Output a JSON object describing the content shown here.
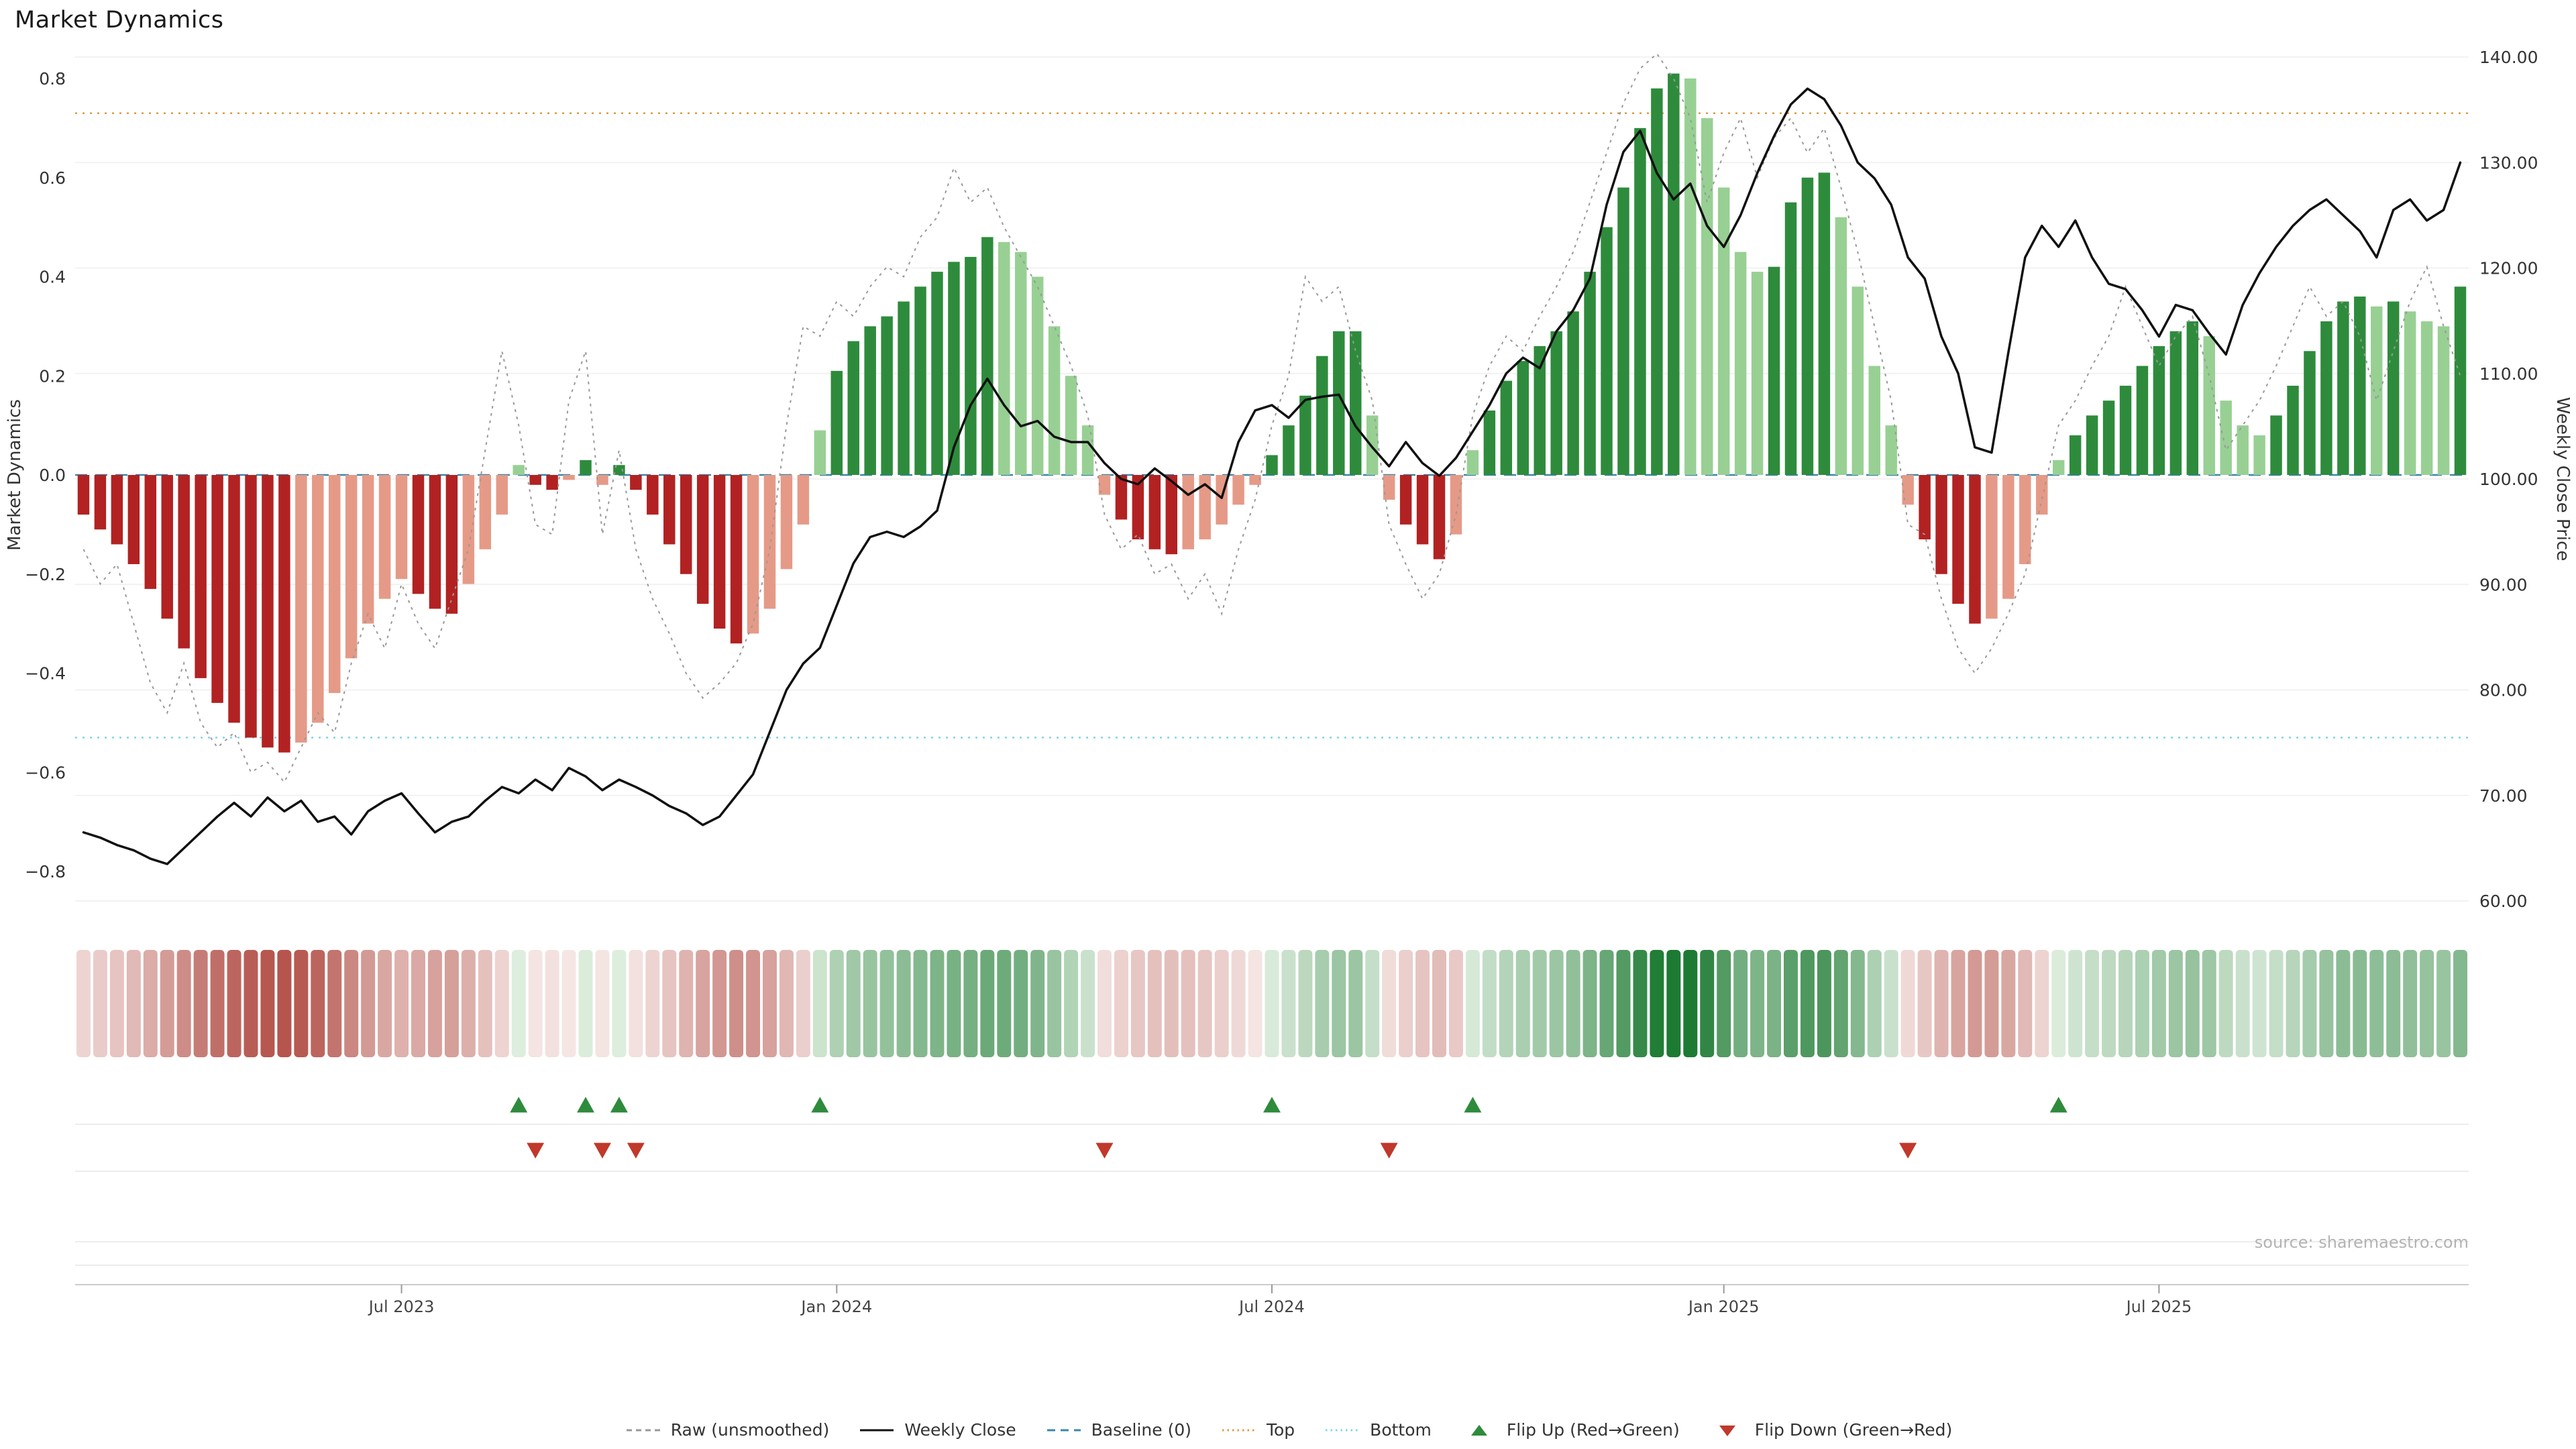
{
  "title": "Market Dynamics",
  "source": "source: sharemaestro.com",
  "axes": {
    "left_ticks": [
      {
        "label": "0.8",
        "v": 0.8
      },
      {
        "label": "0.6",
        "v": 0.6
      },
      {
        "label": "0.4",
        "v": 0.4
      },
      {
        "label": "0.2",
        "v": 0.2
      },
      {
        "label": "0.0",
        "v": 0.0
      },
      {
        "label": "−0.2",
        "v": -0.2
      },
      {
        "label": "−0.4",
        "v": -0.4
      },
      {
        "label": "−0.6",
        "v": -0.6
      },
      {
        "label": "−0.8",
        "v": -0.8
      }
    ],
    "right_ticks": [
      {
        "label": "140.00",
        "v": 140
      },
      {
        "label": "130.00",
        "v": 130
      },
      {
        "label": "120.00",
        "v": 120
      },
      {
        "label": "110.00",
        "v": 110
      },
      {
        "label": "100.00",
        "v": 100
      },
      {
        "label": "90.00",
        "v": 90
      },
      {
        "label": "80.00",
        "v": 80
      },
      {
        "label": "70.00",
        "v": 70
      },
      {
        "label": "60.00",
        "v": 60
      }
    ],
    "x_ticks": [
      {
        "label": "Jul 2023",
        "date": "2023-07-03"
      },
      {
        "label": "Jan 2024",
        "date": "2024-01-01"
      },
      {
        "label": "Jul 2024",
        "date": "2024-07-01"
      },
      {
        "label": "Jan 2025",
        "date": "2025-01-06"
      },
      {
        "label": "Jul 2025",
        "date": "2025-07-07"
      }
    ]
  },
  "legend": [
    {
      "label": "Raw (unsmoothed)",
      "swatch": "dashed-line",
      "color": "#999999"
    },
    {
      "label": "Weekly Close",
      "swatch": "solid-line",
      "color": "#111111"
    },
    {
      "label": "Baseline (0)",
      "swatch": "long-dashed-line",
      "color": "#3a87ad"
    },
    {
      "label": "Top",
      "swatch": "dotted-line",
      "color": "#e0993f"
    },
    {
      "label": "Bottom",
      "swatch": "dotted-line",
      "color": "#7fd4e8"
    },
    {
      "label": "Flip Up (Red→Green)",
      "swatch": "triangle-up",
      "color": "#2e8b3c"
    },
    {
      "label": "Flip Down (Green→Red)",
      "swatch": "triangle-down",
      "color": "#c0392b"
    }
  ],
  "colors": {
    "bar_dark_green": "#2e8b3c",
    "bar_light_green": "#98d094",
    "bar_dark_red": "#b22222",
    "bar_light_red": "#e59a87",
    "price_line": "#111111",
    "raw_line": "#999999",
    "baseline": "#3a87ad",
    "top_line": "#e0993f",
    "bottom_line": "#7fd4e8",
    "flip_up": "#2e8b3c",
    "flip_down": "#c0392b",
    "heat_green_deep": "#1d7a33",
    "heat_green_pale": "#e2f0e2",
    "heat_red_deep": "#b04a42",
    "heat_red_pale": "#f6e9e7"
  },
  "chart_data": {
    "type": "bar+line",
    "title": "Market Dynamics",
    "left_axis": {
      "label": "Market Dynamics",
      "range": [
        -0.88,
        0.88
      ]
    },
    "right_axis": {
      "label": "Weekly Close Price",
      "range": [
        58,
        142
      ]
    },
    "reference_lines": {
      "baseline": 0,
      "top": 0.73,
      "bottom": -0.53
    },
    "flip_up_dates": [
      "2023-08-21",
      "2023-09-18",
      "2023-10-02",
      "2023-12-25",
      "2024-07-01",
      "2024-09-23",
      "2025-05-26"
    ],
    "flip_down_dates": [
      "2023-08-28",
      "2023-09-25",
      "2023-10-09",
      "2024-04-22",
      "2024-08-19",
      "2025-03-24"
    ],
    "x": [
      "2023-02-20",
      "2023-02-27",
      "2023-03-06",
      "2023-03-13",
      "2023-03-20",
      "2023-03-27",
      "2023-04-03",
      "2023-04-10",
      "2023-04-17",
      "2023-04-24",
      "2023-05-01",
      "2023-05-08",
      "2023-05-15",
      "2023-05-22",
      "2023-05-29",
      "2023-06-05",
      "2023-06-12",
      "2023-06-19",
      "2023-06-26",
      "2023-07-03",
      "2023-07-10",
      "2023-07-17",
      "2023-07-24",
      "2023-07-31",
      "2023-08-07",
      "2023-08-14",
      "2023-08-21",
      "2023-08-28",
      "2023-09-04",
      "2023-09-11",
      "2023-09-18",
      "2023-09-25",
      "2023-10-02",
      "2023-10-09",
      "2023-10-16",
      "2023-10-23",
      "2023-10-30",
      "2023-11-06",
      "2023-11-13",
      "2023-11-20",
      "2023-11-27",
      "2023-12-04",
      "2023-12-11",
      "2023-12-18",
      "2023-12-25",
      "2024-01-01",
      "2024-01-08",
      "2024-01-15",
      "2024-01-22",
      "2024-01-29",
      "2024-02-05",
      "2024-02-12",
      "2024-02-19",
      "2024-02-26",
      "2024-03-04",
      "2024-03-11",
      "2024-03-18",
      "2024-03-25",
      "2024-04-01",
      "2024-04-08",
      "2024-04-15",
      "2024-04-22",
      "2024-04-29",
      "2024-05-06",
      "2024-05-13",
      "2024-05-20",
      "2024-05-27",
      "2024-06-03",
      "2024-06-10",
      "2024-06-17",
      "2024-06-24",
      "2024-07-01",
      "2024-07-08",
      "2024-07-15",
      "2024-07-22",
      "2024-07-29",
      "2024-08-05",
      "2024-08-12",
      "2024-08-19",
      "2024-08-26",
      "2024-09-02",
      "2024-09-09",
      "2024-09-16",
      "2024-09-23",
      "2024-09-30",
      "2024-10-07",
      "2024-10-14",
      "2024-10-21",
      "2024-10-28",
      "2024-11-04",
      "2024-11-11",
      "2024-11-18",
      "2024-11-25",
      "2024-12-02",
      "2024-12-09",
      "2024-12-16",
      "2024-12-23",
      "2024-12-30",
      "2025-01-06",
      "2025-01-13",
      "2025-01-20",
      "2025-01-27",
      "2025-02-03",
      "2025-02-10",
      "2025-02-17",
      "2025-02-24",
      "2025-03-03",
      "2025-03-10",
      "2025-03-17",
      "2025-03-24",
      "2025-03-31",
      "2025-04-07",
      "2025-04-14",
      "2025-04-21",
      "2025-04-28",
      "2025-05-05",
      "2025-05-12",
      "2025-05-19",
      "2025-05-26",
      "2025-06-02",
      "2025-06-09",
      "2025-06-16",
      "2025-06-23",
      "2025-06-30",
      "2025-07-07",
      "2025-07-14",
      "2025-07-21",
      "2025-07-28",
      "2025-08-04",
      "2025-08-11",
      "2025-08-18",
      "2025-08-25",
      "2025-09-01",
      "2025-09-08",
      "2025-09-15",
      "2025-09-22",
      "2025-09-29",
      "2025-10-06",
      "2025-10-13",
      "2025-10-20",
      "2025-10-27",
      "2025-11-03",
      "2025-11-10"
    ],
    "series": [
      {
        "name": "Market Dynamics (smoothed bars)",
        "type": "bar",
        "axis": "left",
        "values": [
          -0.08,
          -0.11,
          -0.14,
          -0.18,
          -0.23,
          -0.29,
          -0.35,
          -0.41,
          -0.46,
          -0.5,
          -0.53,
          -0.55,
          -0.56,
          -0.54,
          -0.5,
          -0.44,
          -0.37,
          -0.3,
          -0.25,
          -0.21,
          -0.24,
          -0.27,
          -0.28,
          -0.22,
          -0.15,
          -0.08,
          0.02,
          -0.02,
          -0.03,
          -0.01,
          0.03,
          -0.02,
          0.02,
          -0.03,
          -0.08,
          -0.14,
          -0.2,
          -0.26,
          -0.31,
          -0.34,
          -0.32,
          -0.27,
          -0.19,
          -0.1,
          0.09,
          0.21,
          0.27,
          0.3,
          0.32,
          0.35,
          0.38,
          0.41,
          0.43,
          0.44,
          0.48,
          0.47,
          0.45,
          0.4,
          0.3,
          0.2,
          0.1,
          -0.04,
          -0.09,
          -0.13,
          -0.15,
          -0.16,
          -0.15,
          -0.13,
          -0.1,
          -0.06,
          -0.02,
          0.04,
          0.1,
          0.16,
          0.24,
          0.29,
          0.29,
          0.12,
          -0.05,
          -0.1,
          -0.14,
          -0.17,
          -0.12,
          0.05,
          0.13,
          0.19,
          0.23,
          0.26,
          0.29,
          0.33,
          0.41,
          0.5,
          0.58,
          0.7,
          0.78,
          0.81,
          0.8,
          0.72,
          0.58,
          0.45,
          0.41,
          0.42,
          0.55,
          0.6,
          0.61,
          0.52,
          0.38,
          0.22,
          0.1,
          -0.06,
          -0.13,
          -0.2,
          -0.26,
          -0.3,
          -0.29,
          -0.25,
          -0.18,
          -0.08,
          0.03,
          0.08,
          0.12,
          0.15,
          0.18,
          0.22,
          0.26,
          0.29,
          0.31,
          0.28,
          0.15,
          0.1,
          0.08,
          0.12,
          0.18,
          0.25,
          0.31,
          0.35,
          0.36,
          0.34,
          0.35,
          0.33,
          0.31,
          0.3,
          0.38
        ]
      },
      {
        "name": "Raw (unsmoothed)",
        "type": "line",
        "axis": "left",
        "values": [
          -0.15,
          -0.22,
          -0.18,
          -0.3,
          -0.42,
          -0.48,
          -0.38,
          -0.5,
          -0.55,
          -0.52,
          -0.6,
          -0.58,
          -0.62,
          -0.55,
          -0.48,
          -0.52,
          -0.38,
          -0.28,
          -0.35,
          -0.22,
          -0.3,
          -0.35,
          -0.25,
          -0.15,
          0.05,
          0.25,
          0.1,
          -0.1,
          -0.12,
          0.15,
          0.25,
          -0.12,
          0.05,
          -0.15,
          -0.25,
          -0.32,
          -0.4,
          -0.45,
          -0.42,
          -0.38,
          -0.3,
          -0.15,
          0.1,
          0.3,
          0.28,
          0.35,
          0.32,
          0.38,
          0.42,
          0.4,
          0.48,
          0.52,
          0.62,
          0.55,
          0.58,
          0.5,
          0.44,
          0.38,
          0.3,
          0.22,
          0.12,
          -0.08,
          -0.15,
          -0.12,
          -0.2,
          -0.18,
          -0.25,
          -0.2,
          -0.28,
          -0.15,
          -0.05,
          0.1,
          0.2,
          0.4,
          0.35,
          0.38,
          0.25,
          0.15,
          -0.1,
          -0.18,
          -0.25,
          -0.2,
          -0.08,
          0.12,
          0.22,
          0.28,
          0.25,
          0.32,
          0.38,
          0.45,
          0.55,
          0.65,
          0.75,
          0.82,
          0.85,
          0.8,
          0.72,
          0.55,
          0.65,
          0.72,
          0.6,
          0.68,
          0.72,
          0.65,
          0.7,
          0.58,
          0.45,
          0.3,
          0.15,
          -0.1,
          -0.12,
          -0.25,
          -0.35,
          -0.4,
          -0.35,
          -0.28,
          -0.2,
          -0.05,
          0.1,
          0.15,
          0.22,
          0.28,
          0.38,
          0.3,
          0.22,
          0.28,
          0.32,
          0.2,
          0.05,
          0.1,
          0.15,
          0.22,
          0.3,
          0.38,
          0.32,
          0.35,
          0.28,
          0.15,
          0.25,
          0.35,
          0.42,
          0.3,
          0.2
        ]
      },
      {
        "name": "Weekly Close",
        "type": "line",
        "axis": "right",
        "values": [
          66.5,
          66.0,
          65.3,
          64.8,
          64.0,
          63.5,
          65.0,
          66.5,
          68.0,
          69.3,
          68.0,
          69.8,
          68.5,
          69.5,
          67.5,
          68.0,
          66.3,
          68.5,
          69.5,
          70.2,
          68.3,
          66.5,
          67.5,
          68.0,
          69.5,
          70.8,
          70.2,
          71.5,
          70.5,
          72.6,
          71.8,
          70.5,
          71.5,
          70.8,
          70.0,
          69.0,
          68.3,
          67.2,
          68.0,
          70.0,
          72.0,
          76.0,
          80.0,
          82.5,
          84.0,
          88.0,
          92.0,
          94.5,
          95.0,
          94.5,
          95.5,
          97.0,
          103.0,
          107.0,
          109.5,
          107.0,
          105.0,
          105.5,
          104.0,
          103.5,
          103.5,
          101.5,
          100.0,
          99.5,
          101.0,
          99.8,
          98.5,
          99.5,
          98.2,
          103.5,
          106.5,
          107.0,
          105.8,
          107.5,
          107.8,
          108.0,
          105.0,
          103.0,
          101.2,
          103.5,
          101.5,
          100.3,
          102.0,
          104.5,
          107.0,
          110.0,
          111.5,
          110.5,
          114.0,
          116.0,
          119.0,
          126.0,
          131.0,
          133.0,
          129.0,
          126.5,
          128.0,
          124.0,
          122.0,
          125.0,
          129.0,
          132.5,
          135.5,
          137.0,
          136.0,
          133.5,
          130.0,
          128.5,
          126.0,
          121.0,
          119.0,
          113.5,
          110.0,
          103.0,
          102.5,
          112.0,
          121.0,
          124.0,
          122.0,
          124.5,
          121.0,
          118.5,
          118.0,
          116.0,
          113.5,
          116.5,
          116.0,
          113.8,
          111.8,
          116.5,
          119.5,
          122.0,
          124.0,
          125.5,
          126.5,
          125.0,
          123.5,
          121.0,
          125.5,
          126.5,
          124.5,
          125.5,
          130.0
        ]
      }
    ]
  }
}
